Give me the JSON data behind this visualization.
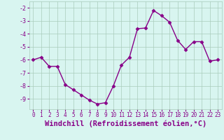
{
  "x": [
    0,
    1,
    2,
    3,
    4,
    5,
    6,
    7,
    8,
    9,
    10,
    11,
    12,
    13,
    14,
    15,
    16,
    17,
    18,
    19,
    20,
    21,
    22,
    23
  ],
  "y": [
    -6.0,
    -5.8,
    -6.5,
    -6.5,
    -7.9,
    -8.3,
    -8.7,
    -9.1,
    -9.4,
    -9.3,
    -8.0,
    -6.4,
    -5.8,
    -3.6,
    -3.55,
    -2.2,
    -2.6,
    -3.1,
    -4.5,
    -5.2,
    -4.6,
    -4.6,
    -6.1,
    -6.0
  ],
  "line_color": "#880088",
  "marker": "D",
  "marker_size": 2.5,
  "bg_color": "#d8f5f0",
  "grid_color": "#aaccbb",
  "xlabel": "Windchill (Refroidissement éolien,°C)",
  "xlabel_fontsize": 7.5,
  "xlabel_text_color": "#880088",
  "tick_color": "#880088",
  "ylim": [
    -9.8,
    -1.5
  ],
  "xlim": [
    -0.5,
    23.5
  ],
  "yticks": [
    -9,
    -8,
    -7,
    -6,
    -5,
    -4,
    -3,
    -2
  ],
  "xticks": [
    0,
    1,
    2,
    3,
    4,
    5,
    6,
    7,
    8,
    9,
    10,
    11,
    12,
    13,
    14,
    15,
    16,
    17,
    18,
    19,
    20,
    21,
    22,
    23
  ],
  "tick_labelsize": 6,
  "xtick_labelsize": 5.5
}
